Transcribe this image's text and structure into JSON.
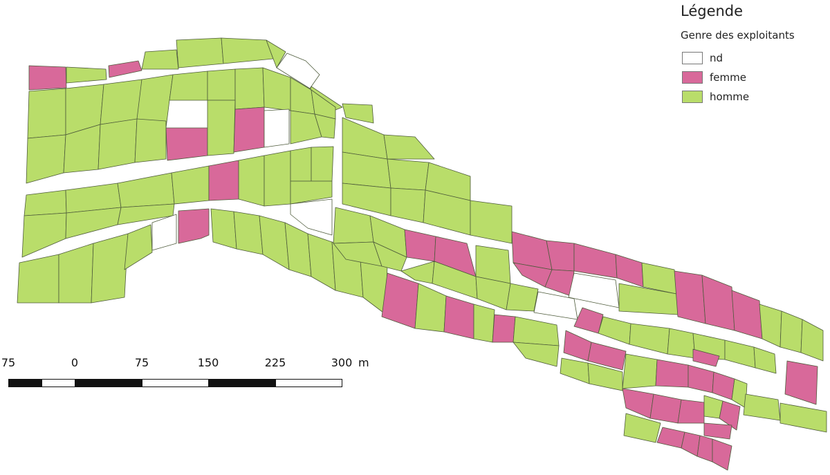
{
  "legend": {
    "title": "Légende",
    "subtitle": "Genre des exploitants",
    "items": [
      {
        "key": "nd",
        "label": "nd",
        "color": "#ffffff"
      },
      {
        "key": "femme",
        "label": "femme",
        "color": "#d8699a"
      },
      {
        "key": "homme",
        "label": "homme",
        "color": "#b9dd6a"
      }
    ]
  },
  "scale": {
    "labels": [
      "75",
      "0",
      "75",
      "150",
      "225",
      "300"
    ],
    "unit": "m"
  },
  "colors": {
    "nd": "#ffffff",
    "femme": "#d8699a",
    "homme": "#b9dd6a",
    "outline": "#4d5a3a"
  }
}
